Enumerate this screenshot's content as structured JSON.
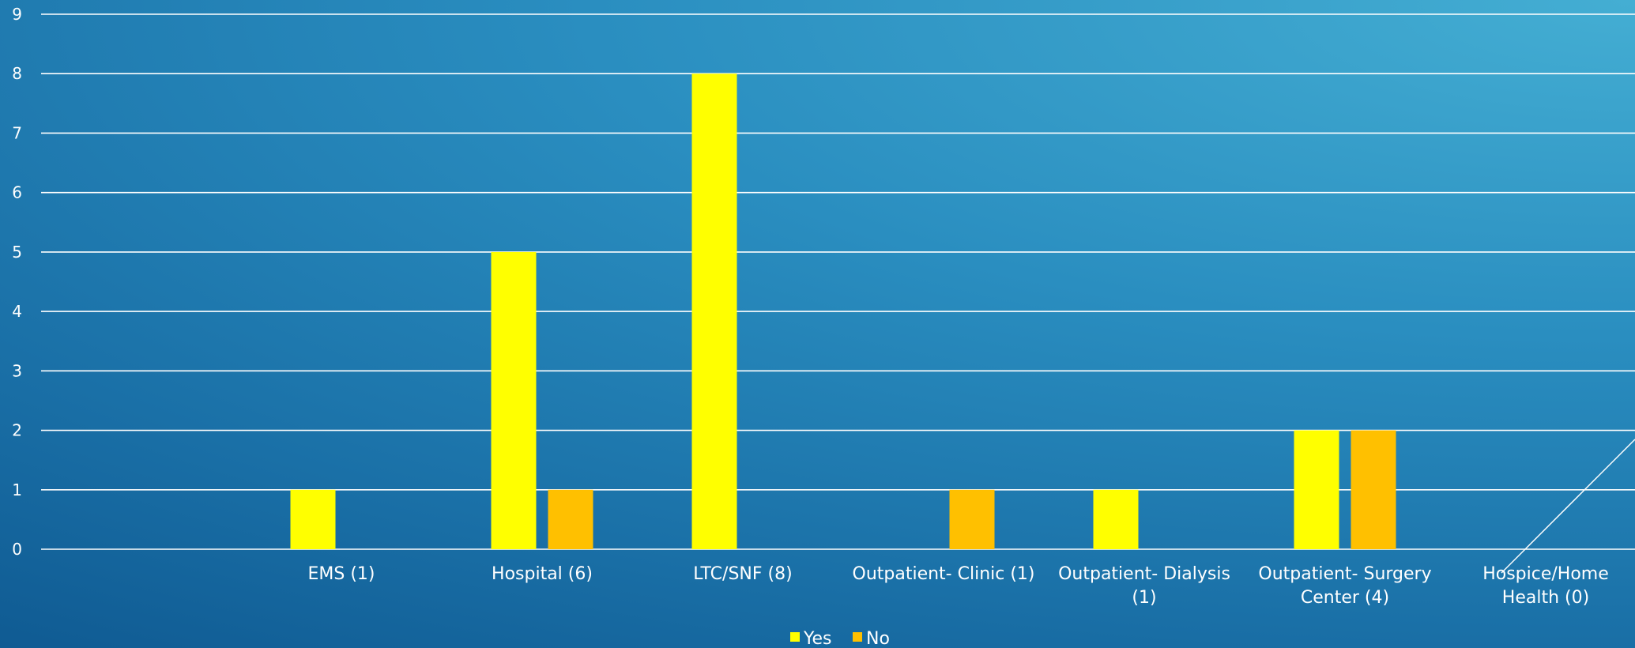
{
  "chart_data": {
    "type": "bar",
    "categories": [
      [
        "EMS (1)"
      ],
      [
        "Hospital (6)"
      ],
      [
        "LTC/SNF (8)"
      ],
      [
        "Outpatient- Clinic (1)"
      ],
      [
        "Outpatient- Dialysis",
        "(1)"
      ],
      [
        "Outpatient- Surgery",
        "Center (4)"
      ],
      [
        "Hospice/Home",
        "Health (0)"
      ]
    ],
    "series": [
      {
        "name": "Yes",
        "color": "#ffff00",
        "values": [
          1,
          5,
          8,
          0,
          1,
          2,
          0
        ]
      },
      {
        "name": "No",
        "color": "#ffc000",
        "values": [
          0,
          1,
          0,
          1,
          0,
          2,
          0
        ]
      }
    ],
    "ylim": [
      0,
      9
    ],
    "yticks": [
      0,
      1,
      2,
      3,
      4,
      5,
      6,
      7,
      8,
      9
    ],
    "grid": true,
    "legend_position": "bottom-center"
  }
}
